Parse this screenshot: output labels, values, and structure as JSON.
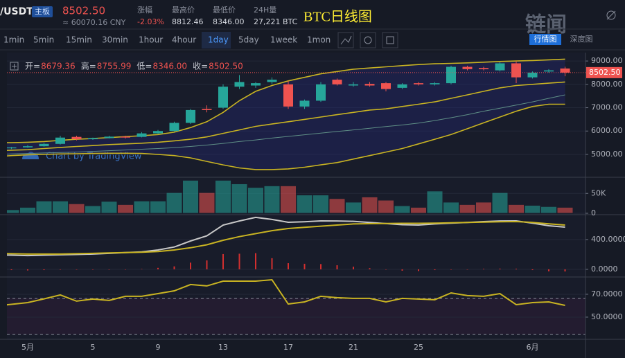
{
  "header": {
    "pair": "/USDT",
    "board": "主板",
    "price": "8502.50",
    "cny": "≈ 60070.16 CNY",
    "stats": [
      {
        "label": "涨幅",
        "value": "-2.03%"
      },
      {
        "label": "最高价",
        "value": "8812.46"
      },
      {
        "label": "最低价",
        "value": "8346.00"
      },
      {
        "label": "24H量",
        "value": "27,221 BTC"
      }
    ],
    "overlay_title": "BTC日线图",
    "logo": "链闻",
    "tabs": [
      "行情图",
      "深度图"
    ]
  },
  "toolbar": {
    "intervals": [
      "1min",
      "5min",
      "15min",
      "30min",
      "1hour",
      "4hour",
      "1day",
      "5day",
      "1week",
      "1mon"
    ],
    "active": 6
  },
  "legend": [
    {
      "label": "开=",
      "value": "8679.36"
    },
    {
      "label": "高=",
      "value": "8755.99"
    },
    {
      "label": "低=",
      "value": "8346.00"
    },
    {
      "label": "收=",
      "value": "8502.50"
    }
  ],
  "watermark": "Chart by TradingView",
  "last_price_label": "8502.50",
  "chart_data": [
    {
      "type": "candlestick",
      "categories": [
        null,
        null,
        "5月",
        null,
        null,
        null,
        "5",
        null,
        null,
        null,
        "9",
        null,
        null,
        null,
        "13",
        null,
        null,
        null,
        "17",
        null,
        null,
        null,
        "21",
        null,
        null,
        null,
        "25",
        null,
        null,
        null,
        null,
        null,
        null,
        "6月",
        null,
        null
      ],
      "open": [
        5230,
        5260,
        5300,
        5350,
        5450,
        5750,
        5650,
        5700,
        5760,
        5750,
        5900,
        6000,
        6350,
        6950,
        7000,
        7900,
        7950,
        8100,
        8000,
        7050,
        7300,
        8200,
        7950,
        8020,
        8050,
        7850,
        8050,
        8000,
        8050,
        8750,
        8700,
        8600,
        8900,
        8300,
        8550,
        8679.36
      ],
      "high": [
        5300,
        5320,
        5400,
        5500,
        5800,
        5800,
        5720,
        5800,
        5800,
        5950,
        6050,
        6400,
        6950,
        7100,
        8000,
        8400,
        8100,
        8300,
        8150,
        7350,
        8100,
        8250,
        8100,
        8100,
        8100,
        8050,
        8100,
        8100,
        8800,
        8800,
        8750,
        8950,
        9000,
        8550,
        8650,
        8755.99
      ],
      "low": [
        5200,
        5230,
        5280,
        5330,
        5420,
        5600,
        5620,
        5680,
        5680,
        5730,
        5880,
        5980,
        6300,
        6800,
        6950,
        7800,
        7850,
        8000,
        6950,
        6950,
        7250,
        7950,
        7900,
        7900,
        7700,
        7800,
        7950,
        7950,
        8000,
        8600,
        8600,
        8550,
        8050,
        8250,
        8500,
        8346
      ],
      "close": [
        5260,
        5300,
        5350,
        5450,
        5720,
        5650,
        5700,
        5760,
        5720,
        5900,
        6000,
        6350,
        6900,
        6900,
        7900,
        8100,
        8050,
        8200,
        7050,
        7300,
        8000,
        8000,
        8000,
        7950,
        7800,
        8000,
        8000,
        8050,
        8750,
        8650,
        8650,
        8900,
        8300,
        8500,
        8600,
        8502.5
      ],
      "up_color": "#26a69a",
      "down_color": "#ef5350",
      "overlays": [
        {
          "color": "#c9b422",
          "values": [
            5500,
            5500,
            5520,
            5550,
            5600,
            5650,
            5680,
            5720,
            5760,
            5800,
            5850,
            5950,
            6150,
            6400,
            6800,
            7300,
            7700,
            7950,
            8150,
            8300,
            8450,
            8550,
            8650,
            8700,
            8750,
            8800,
            8850,
            8880,
            8900,
            8920,
            8950,
            8980,
            9000,
            9020,
            9050,
            9080
          ]
        },
        {
          "color": "#c9b422",
          "values": [
            4900,
            4950,
            4980,
            5000,
            5020,
            5030,
            5040,
            5050,
            5050,
            5040,
            5000,
            4950,
            4850,
            4700,
            4550,
            4420,
            4350,
            4350,
            4380,
            4450,
            4550,
            4650,
            4800,
            4950,
            5100,
            5250,
            5450,
            5650,
            5850,
            6100,
            6350,
            6600,
            6850,
            7050,
            7150,
            7150
          ]
        },
        {
          "color": "#c9b422",
          "values": [
            5150,
            5180,
            5200,
            5250,
            5300,
            5340,
            5380,
            5420,
            5450,
            5480,
            5520,
            5580,
            5650,
            5750,
            5900,
            6050,
            6200,
            6300,
            6400,
            6500,
            6600,
            6700,
            6800,
            6900,
            6950,
            7050,
            7150,
            7250,
            7400,
            7550,
            7700,
            7850,
            7950,
            8000,
            8050,
            8100
          ]
        },
        {
          "color": "#5f8f86",
          "values": [
            5000,
            5020,
            5040,
            5060,
            5080,
            5100,
            5130,
            5160,
            5190,
            5220,
            5250,
            5290,
            5340,
            5400,
            5470,
            5550,
            5620,
            5700,
            5770,
            5840,
            5910,
            5980,
            6050,
            6120,
            6190,
            6260,
            6340,
            6450,
            6570,
            6700,
            6850,
            6980,
            7110,
            7250,
            7400,
            7550
          ]
        }
      ],
      "ylim": [
        4050,
        9240
      ],
      "yticks": [
        {
          "value": 9000,
          "label": "9000.00"
        },
        {
          "value": 8000,
          "label": "8000.00"
        },
        {
          "value": 7000,
          "label": "7000.00"
        },
        {
          "value": 6000,
          "label": "6000.00"
        },
        {
          "value": 5000,
          "label": "5000.00"
        }
      ]
    },
    {
      "type": "bar",
      "values": [
        18000,
        9000,
        15000,
        31000,
        31000,
        24000,
        19000,
        30000,
        22000,
        31000,
        31000,
        52000,
        83000,
        52000,
        83000,
        74000,
        65000,
        69000,
        69000,
        46000,
        46000,
        37000,
        28000,
        41000,
        33000,
        19000,
        15000,
        56000,
        28000,
        22000,
        28000,
        52000,
        22000,
        20000,
        17000,
        15000
      ],
      "ylim": [
        0,
        87000
      ],
      "yticks": [
        {
          "value": 50000,
          "label": "50K"
        },
        0
      ]
    },
    {
      "type": "line",
      "series": [
        {
          "color": "#c8c8c8",
          "values": [
            195,
            190,
            185,
            190,
            195,
            200,
            205,
            215,
            225,
            235,
            260,
            300,
            381,
            450,
            595,
            650,
            698,
            670,
            632,
            640,
            651,
            650,
            645,
            630,
            615,
            600,
            595,
            610,
            620,
            630,
            642,
            650,
            651,
            620,
            586,
            567
          ]
        },
        {
          "color": "#c9b422",
          "values": [
            214,
            210,
            205,
            205,
            205,
            210,
            215,
            220,
            225,
            230,
            240,
            260,
            290,
            330,
            390,
            440,
            480,
            520,
            549,
            565,
            580,
            595,
            610,
            614,
            616,
            618,
            618,
            620,
            625,
            630,
            635,
            640,
            642,
            630,
            612,
            595
          ]
        }
      ],
      "histogram": [
        -10,
        -10,
        -15,
        -10,
        -5,
        -5,
        -5,
        -5,
        0,
        5,
        20,
        40,
        90,
        120,
        205,
        210,
        218,
        150,
        83,
        75,
        71,
        55,
        35,
        16,
        -1,
        -18,
        -23,
        -10,
        -5,
        0,
        7,
        10,
        9,
        -10,
        -26,
        -28
      ],
      "histogram_color": "#d32f2f",
      "ylim": [
        -84,
        716
      ],
      "yticks": [
        {
          "value": 400,
          "label": "400.0000"
        },
        {
          "value": 0,
          "label": "0.0000"
        }
      ]
    },
    {
      "type": "line",
      "series": [
        {
          "color": "#c9b422",
          "values": [
            59.7,
            61.2,
            62.7,
            66,
            69.4,
            64,
            65.8,
            64.6,
            68.2,
            68.2,
            70.6,
            73,
            78.5,
            77.3,
            81.5,
            81.5,
            81.5,
            82.7,
            61.5,
            63.3,
            68.2,
            67,
            66.4,
            66.4,
            63.3,
            66.4,
            65.8,
            65.2,
            71.2,
            68.8,
            68.2,
            70.6,
            60.9,
            62.7,
            63.3,
            60.3
          ]
        }
      ],
      "ylim": [
        30.6,
        83.9
      ],
      "yticks": [
        {
          "value": 70,
          "label": "70.0000"
        },
        {
          "value": 50,
          "label": "50.0000"
        }
      ]
    }
  ]
}
